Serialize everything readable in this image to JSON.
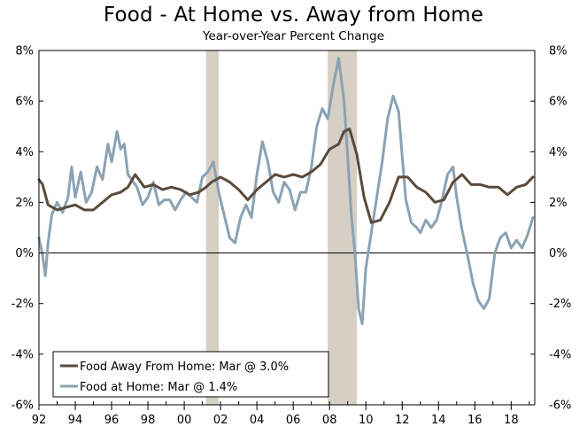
{
  "chart_data": {
    "type": "line",
    "title": "Food - At Home vs. Away from Home",
    "subtitle": "Year-over-Year Percent Change",
    "ylim": [
      -6,
      8
    ],
    "yticks": [
      -6,
      -4,
      -2,
      0,
      2,
      4,
      6,
      8
    ],
    "ytick_labels": [
      "-6%",
      "-4%",
      "-2%",
      "0%",
      "2%",
      "4%",
      "6%",
      "8%"
    ],
    "xlim": [
      1992,
      2019.3
    ],
    "xticks": [
      1992,
      1994,
      1996,
      1998,
      2000,
      2002,
      2004,
      2006,
      2008,
      2010,
      2012,
      2014,
      2016,
      2018
    ],
    "xtick_labels": [
      "92",
      "94",
      "96",
      "98",
      "00",
      "02",
      "04",
      "06",
      "08",
      "10",
      "12",
      "14",
      "16",
      "18"
    ],
    "recessions": [
      [
        2001.2,
        2001.9
      ],
      [
        2007.9,
        2009.5
      ]
    ],
    "legend_position": "bottom-left",
    "series": [
      {
        "name": "Food Away From Home: Mar @ 3.0%",
        "color": "#5a4a3c",
        "x": [
          1992.0,
          1992.2,
          1992.5,
          1993.0,
          1993.5,
          1994.0,
          1994.5,
          1995.0,
          1995.5,
          1996.0,
          1996.5,
          1996.9,
          1997.3,
          1997.8,
          1998.3,
          1998.8,
          1999.3,
          1999.8,
          2000.3,
          2000.8,
          2001.2,
          2001.5,
          2002.0,
          2002.5,
          2003.0,
          2003.5,
          2004.0,
          2004.5,
          2005.0,
          2005.5,
          2006.0,
          2006.5,
          2007.0,
          2007.5,
          2008.0,
          2008.5,
          2008.8,
          2009.1,
          2009.5,
          2009.9,
          2010.3,
          2010.8,
          2011.3,
          2011.8,
          2012.3,
          2012.8,
          2013.3,
          2013.8,
          2014.3,
          2014.8,
          2015.3,
          2015.8,
          2016.3,
          2016.8,
          2017.3,
          2017.8,
          2018.3,
          2018.8,
          2019.2
        ],
        "values": [
          2.9,
          2.7,
          1.9,
          1.7,
          1.8,
          1.9,
          1.7,
          1.7,
          2.0,
          2.3,
          2.4,
          2.6,
          3.1,
          2.6,
          2.7,
          2.5,
          2.6,
          2.5,
          2.3,
          2.4,
          2.6,
          2.8,
          3.0,
          2.8,
          2.5,
          2.1,
          2.5,
          2.8,
          3.1,
          3.0,
          3.1,
          3.0,
          3.2,
          3.5,
          4.1,
          4.3,
          4.8,
          4.9,
          3.9,
          2.2,
          1.2,
          1.3,
          2.0,
          3.0,
          3.0,
          2.6,
          2.4,
          2.0,
          2.1,
          2.8,
          3.1,
          2.7,
          2.7,
          2.6,
          2.6,
          2.3,
          2.6,
          2.7,
          3.0
        ]
      },
      {
        "name": "Food at Home: Mar @ 1.4%",
        "color": "#8aa2b3",
        "x": [
          1992.0,
          1992.2,
          1992.35,
          1992.5,
          1992.7,
          1993.0,
          1993.3,
          1993.6,
          1993.8,
          1994.0,
          1994.3,
          1994.6,
          1994.9,
          1995.2,
          1995.5,
          1995.8,
          1996.0,
          1996.3,
          1996.5,
          1996.7,
          1996.9,
          1997.1,
          1997.4,
          1997.7,
          1998.0,
          1998.3,
          1998.6,
          1998.9,
          1999.2,
          1999.5,
          1999.8,
          2000.1,
          2000.4,
          2000.7,
          2001.0,
          2001.3,
          2001.6,
          2001.9,
          2002.2,
          2002.5,
          2002.8,
          2003.1,
          2003.4,
          2003.7,
          2004.0,
          2004.3,
          2004.6,
          2004.9,
          2005.2,
          2005.5,
          2005.8,
          2006.1,
          2006.4,
          2006.7,
          2007.0,
          2007.3,
          2007.6,
          2007.9,
          2008.2,
          2008.5,
          2008.8,
          2009.0,
          2009.2,
          2009.4,
          2009.6,
          2009.8,
          2010.0,
          2010.3,
          2010.6,
          2010.9,
          2011.2,
          2011.5,
          2011.8,
          2012.0,
          2012.2,
          2012.5,
          2012.8,
          2013.0,
          2013.3,
          2013.6,
          2013.9,
          2014.2,
          2014.5,
          2014.8,
          2015.0,
          2015.3,
          2015.6,
          2015.9,
          2016.2,
          2016.5,
          2016.8,
          2017.1,
          2017.4,
          2017.7,
          2018.0,
          2018.3,
          2018.6,
          2018.9,
          2019.2
        ],
        "values": [
          0.6,
          -0.1,
          -0.9,
          0.4,
          1.5,
          2.0,
          1.6,
          2.2,
          3.4,
          2.2,
          3.2,
          2.0,
          2.4,
          3.4,
          2.9,
          4.3,
          3.6,
          4.8,
          4.1,
          4.3,
          3.1,
          2.9,
          2.6,
          1.9,
          2.2,
          2.8,
          1.9,
          2.1,
          2.1,
          1.7,
          2.1,
          2.4,
          2.2,
          2.0,
          3.0,
          3.2,
          3.6,
          2.4,
          1.5,
          0.6,
          0.4,
          1.4,
          1.9,
          1.4,
          3.1,
          4.4,
          3.6,
          2.4,
          2.0,
          2.8,
          2.5,
          1.7,
          2.4,
          2.4,
          3.4,
          5.0,
          5.7,
          5.3,
          6.6,
          7.7,
          6.0,
          3.8,
          1.5,
          0.0,
          -2.2,
          -2.8,
          -0.6,
          0.8,
          2.2,
          3.6,
          5.3,
          6.2,
          5.6,
          3.8,
          2.1,
          1.2,
          1.0,
          0.8,
          1.3,
          1.0,
          1.3,
          2.1,
          3.1,
          3.4,
          2.2,
          0.9,
          -0.1,
          -1.2,
          -1.9,
          -2.2,
          -1.8,
          0.0,
          0.6,
          0.8,
          0.2,
          0.5,
          0.2,
          0.7,
          1.4
        ]
      }
    ]
  }
}
